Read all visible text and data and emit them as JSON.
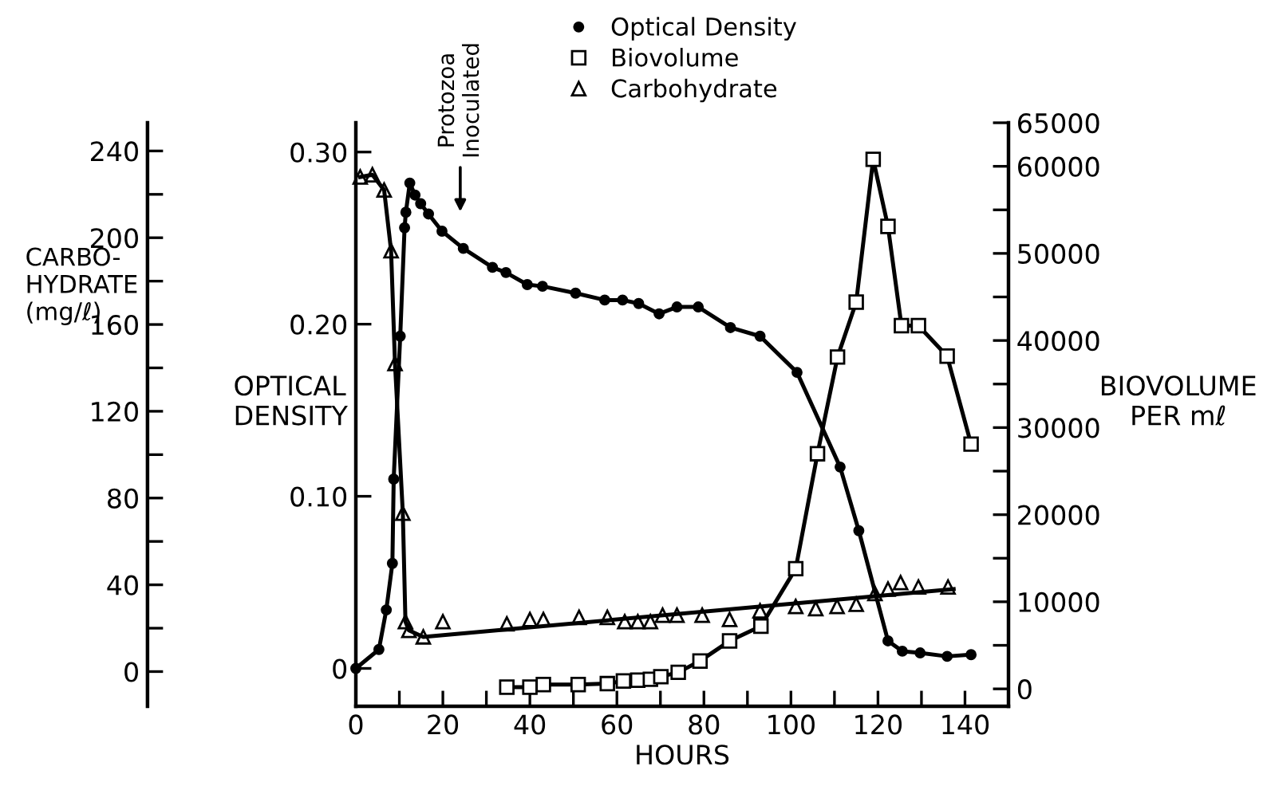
{
  "chart_data": {
    "type": "line",
    "xlabel": "HOURS",
    "ylabel": "OPTICAL\nDENSITY",
    "y2label": "BIOVOLUME\nPER mℓ",
    "y3label": "CARBO-\nHYDRATE\n(mg/ℓ)",
    "xlim": [
      0,
      150
    ],
    "xticks": [
      0,
      {
        "value": 10,
        "label": null
      },
      20,
      {
        "value": 30,
        "label": null
      },
      40,
      {
        "value": 50,
        "label": null
      },
      60,
      {
        "value": 70,
        "label": null
      },
      80,
      {
        "value": 90,
        "label": null
      },
      100,
      {
        "value": 110,
        "label": null
      },
      120,
      {
        "value": 130,
        "label": null
      },
      140,
      {
        "value": 150,
        "label": null
      }
    ],
    "ylim": [
      -0.022,
      0.317
    ],
    "yticks": [
      0,
      {
        "value": 0.1,
        "label": "0.10"
      },
      {
        "value": 0.2,
        "label": "0.20"
      },
      {
        "value": 0.3,
        "label": "0.30"
      }
    ],
    "y2lim": [
      -2000,
      65000
    ],
    "y2ticks": [
      0,
      {
        "value": 5000,
        "label": null
      },
      10000,
      {
        "value": 15000,
        "label": null
      },
      20000,
      {
        "value": 25000,
        "label": null
      },
      30000,
      {
        "value": 35000,
        "label": null
      },
      40000,
      {
        "value": 45000,
        "label": null
      },
      50000,
      {
        "value": 55000,
        "label": null
      },
      60000,
      65000
    ],
    "y3lim": [
      -16,
      253
    ],
    "y3ticks": [
      0,
      40,
      80,
      120,
      160,
      200,
      240
    ],
    "grid": false,
    "legend": "top",
    "annotations": [
      "Protozoa\nInoculated"
    ],
    "series": [
      {
        "name": "Optical Density",
        "axis": "y",
        "marker": "circle",
        "color": "#000000",
        "x": [
          0,
          5.3,
          7.0,
          8.4,
          8.7,
          10.2,
          11.2,
          11.5,
          12.4,
          13.6,
          14.9,
          16.7,
          19.8,
          24.7,
          31.4,
          34.5,
          39.4,
          42.9,
          50.5,
          57.2,
          61.3,
          65.0,
          69.7,
          73.8,
          78.7,
          86.1,
          92.9,
          101.4,
          111.3,
          115.6,
          122.3,
          125.6,
          129.7,
          135.9,
          141.4
        ],
        "values": [
          0,
          0.011,
          0.034,
          0.061,
          0.11,
          0.193,
          0.256,
          0.265,
          0.282,
          0.275,
          0.27,
          0.264,
          0.254,
          0.244,
          0.233,
          0.23,
          0.223,
          0.222,
          0.218,
          0.214,
          0.214,
          0.212,
          0.206,
          0.21,
          0.21,
          0.198,
          0.193,
          0.172,
          0.117,
          0.08,
          0.016,
          0.01,
          0.009,
          0.007,
          0.008
        ]
      },
      {
        "name": "Biovolume",
        "axis": "y2",
        "marker": "square",
        "color": "#000000",
        "x": [
          34.7,
          40.0,
          43.1,
          51.1,
          57.8,
          61.5,
          64.8,
          67.7,
          70.1,
          74.1,
          79.1,
          85.9,
          93.1,
          101.1,
          106.1,
          110.7,
          115.0,
          118.9,
          122.3,
          125.4,
          129.3,
          135.9,
          141.4
        ],
        "values": [
          200,
          200,
          500,
          500,
          600,
          900,
          1000,
          1100,
          1400,
          1900,
          3200,
          5500,
          7200,
          13800,
          27000,
          38100,
          44400,
          60800,
          53100,
          41700,
          41700,
          38200,
          28100
        ]
      },
      {
        "name": "Carbohydrate",
        "type": "scatter",
        "axis": "y3",
        "marker": "triangle",
        "color": "#000000",
        "x": [
          1,
          3.8,
          6.5,
          8.1,
          9.0,
          10.8,
          11.4,
          12.2,
          15.5,
          20.0,
          34.7,
          40.0,
          43.1,
          51.3,
          57.8,
          61.8,
          64.8,
          67.7,
          70.5,
          73.8,
          79.6,
          85.9,
          92.9,
          101.1,
          105.7,
          110.6,
          115.0,
          119.3,
          122.3,
          125.2,
          129.3,
          136.1
        ],
        "values": [
          228,
          229,
          222,
          194,
          142,
          73,
          23,
          19,
          16,
          23,
          22,
          24,
          24,
          25,
          25,
          23,
          23,
          23,
          26,
          26,
          26,
          24,
          28,
          30,
          29,
          30,
          31,
          36,
          38,
          41,
          39,
          39
        ]
      },
      {
        "axis": "y3",
        "marker": "none",
        "color": "#000000",
        "x": [
          1,
          3.8,
          6.5,
          8.1,
          9.0,
          10.8,
          11.4,
          12.2,
          15.5,
          137.4
        ],
        "values": [
          228,
          229,
          222,
          194,
          142,
          73,
          23,
          19,
          16,
          38
        ]
      }
    ]
  }
}
